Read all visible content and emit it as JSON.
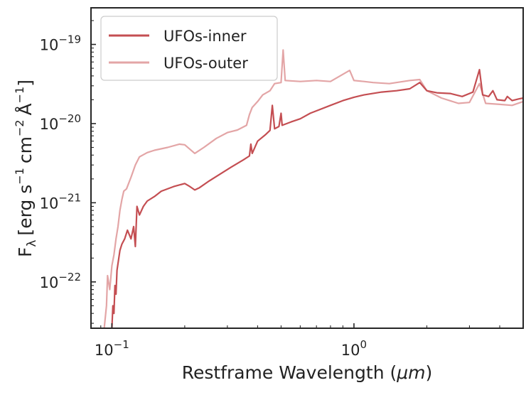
{
  "chart_data": {
    "type": "line",
    "title": "",
    "xlabel": "Restframe Wavelength (μm)",
    "xlabel_parts": {
      "text": "Restframe Wavelength (",
      "symbol": "μm",
      "close": ")"
    },
    "ylabel": "F_λ [erg s^-1 cm^-2 Å^-1]",
    "ylabel_parts": {
      "F": "F",
      "lambda": "λ",
      "open": "[erg s",
      "exp1": "−1",
      "cm": "cm",
      "exp2": "−2",
      "ang": "Å",
      "exp3": "−1",
      "close": "]"
    },
    "xscale": "log",
    "yscale": "log",
    "xlim": [
      0.082,
      5.0
    ],
    "ylim": [
      2.6e-23,
      2.9e-19
    ],
    "x_ticks": [
      {
        "value": 0.1,
        "base": "10",
        "exp": "−1"
      },
      {
        "value": 1.0,
        "base": "10",
        "exp": "0"
      }
    ],
    "y_ticks": [
      {
        "value": 1e-22,
        "base": "10",
        "exp": "−22"
      },
      {
        "value": 1e-21,
        "base": "10",
        "exp": "−21"
      },
      {
        "value": 1e-20,
        "base": "10",
        "exp": "−20"
      },
      {
        "value": 1e-19,
        "base": "10",
        "exp": "−19"
      }
    ],
    "legend_position": "top-left",
    "series": [
      {
        "name": "UFOs-inner",
        "color": "#c44e52",
        "points": [
          [
            0.1,
            2.6e-23
          ],
          [
            0.101,
            5e-23
          ],
          [
            0.102,
            4e-23
          ],
          [
            0.103,
            9e-23
          ],
          [
            0.104,
            7e-23
          ],
          [
            0.105,
            1.4e-22
          ],
          [
            0.108,
            2.5e-22
          ],
          [
            0.11,
            3e-22
          ],
          [
            0.113,
            3.5e-22
          ],
          [
            0.116,
            4.5e-22
          ],
          [
            0.12,
            3.5e-22
          ],
          [
            0.123,
            5e-22
          ],
          [
            0.125,
            2.8e-22
          ],
          [
            0.127,
            9e-22
          ],
          [
            0.13,
            7e-22
          ],
          [
            0.135,
            9e-22
          ],
          [
            0.14,
            1.05e-21
          ],
          [
            0.15,
            1.2e-21
          ],
          [
            0.16,
            1.4e-21
          ],
          [
            0.18,
            1.6e-21
          ],
          [
            0.2,
            1.75e-21
          ],
          [
            0.21,
            1.6e-21
          ],
          [
            0.22,
            1.45e-21
          ],
          [
            0.23,
            1.55e-21
          ],
          [
            0.25,
            1.85e-21
          ],
          [
            0.28,
            2.3e-21
          ],
          [
            0.31,
            2.8e-21
          ],
          [
            0.35,
            3.5e-21
          ],
          [
            0.37,
            3.9e-21
          ],
          [
            0.375,
            5.5e-21
          ],
          [
            0.38,
            4.2e-21
          ],
          [
            0.4,
            6e-21
          ],
          [
            0.43,
            7.2e-21
          ],
          [
            0.45,
            8.2e-21
          ],
          [
            0.46,
            1.7e-20
          ],
          [
            0.47,
            8.6e-21
          ],
          [
            0.49,
            9.2e-21
          ],
          [
            0.5,
            1.35e-20
          ],
          [
            0.505,
            9.5e-21
          ],
          [
            0.55,
            1.05e-20
          ],
          [
            0.6,
            1.15e-20
          ],
          [
            0.66,
            1.35e-20
          ],
          [
            0.7,
            1.45e-20
          ],
          [
            0.8,
            1.7e-20
          ],
          [
            0.9,
            1.95e-20
          ],
          [
            1.0,
            2.15e-20
          ],
          [
            1.1,
            2.3e-20
          ],
          [
            1.3,
            2.5e-20
          ],
          [
            1.5,
            2.6e-20
          ],
          [
            1.7,
            2.75e-20
          ],
          [
            1.87,
            3.3e-20
          ],
          [
            2.0,
            2.6e-20
          ],
          [
            2.2,
            2.45e-20
          ],
          [
            2.5,
            2.4e-20
          ],
          [
            2.8,
            2.2e-20
          ],
          [
            3.1,
            2.5e-20
          ],
          [
            3.3,
            4.8e-20
          ],
          [
            3.4,
            2.3e-20
          ],
          [
            3.6,
            2.2e-20
          ],
          [
            3.75,
            2.6e-20
          ],
          [
            3.9,
            2e-20
          ],
          [
            4.2,
            1.95e-20
          ],
          [
            4.3,
            2.2e-20
          ],
          [
            4.5,
            1.95e-20
          ],
          [
            4.8,
            2.05e-20
          ],
          [
            5.0,
            2.1e-20
          ]
        ]
      },
      {
        "name": "UFOs-outer",
        "color": "#e3a5a6",
        "points": [
          [
            0.093,
            2.6e-23
          ],
          [
            0.095,
            5e-23
          ],
          [
            0.096,
            1.2e-22
          ],
          [
            0.098,
            8e-23
          ],
          [
            0.1,
            1.6e-22
          ],
          [
            0.102,
            2.2e-22
          ],
          [
            0.104,
            3.5e-22
          ],
          [
            0.106,
            5e-22
          ],
          [
            0.108,
            8e-22
          ],
          [
            0.11,
            1.1e-21
          ],
          [
            0.112,
            1.4e-21
          ],
          [
            0.115,
            1.5e-21
          ],
          [
            0.12,
            2.1e-21
          ],
          [
            0.125,
            3e-21
          ],
          [
            0.13,
            3.8e-21
          ],
          [
            0.14,
            4.3e-21
          ],
          [
            0.15,
            4.6e-21
          ],
          [
            0.17,
            5e-21
          ],
          [
            0.19,
            5.5e-21
          ],
          [
            0.2,
            5.4e-21
          ],
          [
            0.22,
            4.2e-21
          ],
          [
            0.24,
            5e-21
          ],
          [
            0.27,
            6.5e-21
          ],
          [
            0.3,
            7.7e-21
          ],
          [
            0.33,
            8.3e-21
          ],
          [
            0.36,
            9.5e-21
          ],
          [
            0.37,
            1.3e-20
          ],
          [
            0.38,
            1.6e-20
          ],
          [
            0.4,
            1.9e-20
          ],
          [
            0.42,
            2.3e-20
          ],
          [
            0.45,
            2.6e-20
          ],
          [
            0.47,
            3.2e-20
          ],
          [
            0.5,
            3.3e-20
          ],
          [
            0.51,
            8.5e-20
          ],
          [
            0.52,
            3.5e-20
          ],
          [
            0.6,
            3.4e-20
          ],
          [
            0.7,
            3.5e-20
          ],
          [
            0.8,
            3.4e-20
          ],
          [
            0.96,
            4.7e-20
          ],
          [
            1.0,
            3.5e-20
          ],
          [
            1.1,
            3.4e-20
          ],
          [
            1.2,
            3.3e-20
          ],
          [
            1.4,
            3.2e-20
          ],
          [
            1.7,
            3.5e-20
          ],
          [
            1.87,
            3.6e-20
          ],
          [
            2.0,
            2.6e-20
          ],
          [
            2.3,
            2.1e-20
          ],
          [
            2.7,
            1.8e-20
          ],
          [
            3.0,
            1.85e-20
          ],
          [
            3.3,
            3.2e-20
          ],
          [
            3.5,
            1.8e-20
          ],
          [
            4.0,
            1.75e-20
          ],
          [
            4.5,
            1.7e-20
          ],
          [
            5.0,
            1.9e-20
          ]
        ]
      }
    ]
  }
}
